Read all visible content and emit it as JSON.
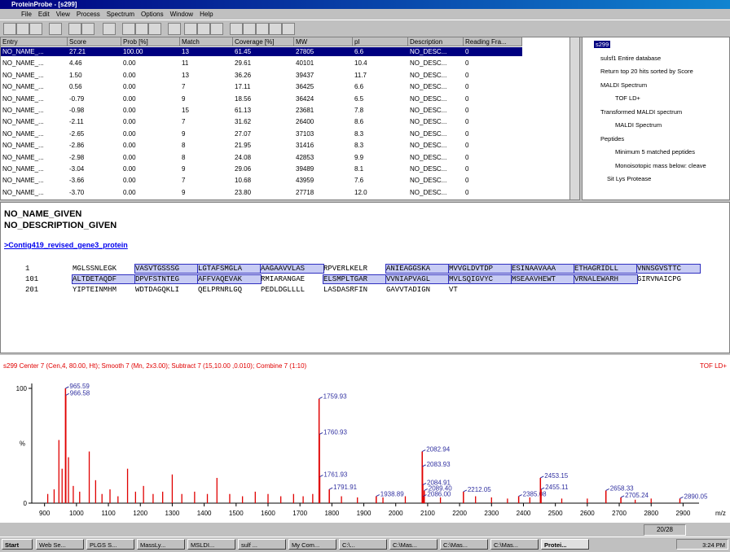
{
  "window": {
    "title": "ProteinProbe - [s299]",
    "menu": [
      "File",
      "Edit",
      "View",
      "Process",
      "Spectrum",
      "Options",
      "Window",
      "Help"
    ]
  },
  "results": {
    "columns": [
      "Entry",
      "Score",
      "Prob [%]",
      "Match",
      "Coverage [%]",
      "MW",
      "pI",
      "Description",
      "Reading Fra..."
    ],
    "rows": [
      [
        "NO_NAME_...",
        "27.21",
        "100.00",
        "13",
        "61.45",
        "27805",
        "6.6",
        "NO_DESC...",
        "0"
      ],
      [
        "NO_NAME_...",
        "4.46",
        "0.00",
        "11",
        "29.61",
        "40101",
        "10.4",
        "NO_DESC...",
        "0"
      ],
      [
        "NO_NAME_...",
        "1.50",
        "0.00",
        "13",
        "36.26",
        "39437",
        "11.7",
        "NO_DESC...",
        "0"
      ],
      [
        "NO_NAME_...",
        "0.56",
        "0.00",
        "7",
        "17.11",
        "36425",
        "6.6",
        "NO_DESC...",
        "0"
      ],
      [
        "NO_NAME_...",
        "-0.79",
        "0.00",
        "9",
        "18.56",
        "36424",
        "6.5",
        "NO_DESC...",
        "0"
      ],
      [
        "NO_NAME_...",
        "-0.98",
        "0.00",
        "15",
        "61.13",
        "23681",
        "7.8",
        "NO_DESC...",
        "0"
      ],
      [
        "NO_NAME_...",
        "-2.11",
        "0.00",
        "7",
        "31.62",
        "26400",
        "8.6",
        "NO_DESC...",
        "0"
      ],
      [
        "NO_NAME_...",
        "-2.65",
        "0.00",
        "9",
        "27.07",
        "37103",
        "8.3",
        "NO_DESC...",
        "0"
      ],
      [
        "NO_NAME_...",
        "-2.86",
        "0.00",
        "8",
        "21.95",
        "31416",
        "8.3",
        "NO_DESC...",
        "0"
      ],
      [
        "NO_NAME_...",
        "-2.98",
        "0.00",
        "8",
        "24.08",
        "42853",
        "9.9",
        "NO_DESC...",
        "0"
      ],
      [
        "NO_NAME_...",
        "-3.04",
        "0.00",
        "9",
        "29.06",
        "39489",
        "8.1",
        "NO_DESC...",
        "0"
      ],
      [
        "NO_NAME_...",
        "-3.66",
        "0.00",
        "7",
        "10.68",
        "43959",
        "7.6",
        "NO_DESC...",
        "0"
      ],
      [
        "NO_NAME_...",
        "-3.70",
        "0.00",
        "9",
        "23.80",
        "27718",
        "12.0",
        "NO_DESC...",
        "0"
      ]
    ]
  },
  "tree": [
    "s299",
    "sulsf1 Entire database",
    "Return top 20 hits sorted by Score",
    "MALDI Spectrum",
    "TOF LD+",
    "Transformed MALDI spectrum",
    "MALDI Spectrum",
    "Peptides",
    "Minimum 5 matched peptides",
    "Monoisotopic mass below: cleave",
    "Sit Lys Protease"
  ],
  "protein": {
    "name": "NO_NAME_GIVEN",
    "description": "NO_DESCRIPTION_GIVEN",
    "link": ">Contig419_revised_gene3_protein",
    "sequence": [
      {
        "start": "1",
        "blocks": [
          "MGLSSNLEGK",
          "VASVTGSSSG",
          "LGTAFSMGLA",
          "AAGAAVVLAS",
          "RPVERLKELR",
          "ANIEAGGSKA",
          "MVVGLDVTDP",
          "ESINAAVAAA",
          "ETHAGRIDLL",
          "VNNSGVSTTC"
        ]
      },
      {
        "start": "101",
        "blocks": [
          "ALTDETAQDF",
          "DPVFSTNTEG",
          "AFFVAQEVAK",
          "RMIARANGAE",
          "ELSMPLTGAR",
          "VVNIAPVAGL",
          "MVLSQIGVYC",
          "MSEAAVHEWT",
          "VRNALEWARH",
          "GIRVNAICPG"
        ]
      },
      {
        "start": "201",
        "blocks": [
          "YIPTEINMHM",
          "WDTDAGQKLI",
          "QELPRNRLGQ",
          "PEDLDGLLLL",
          "LASDASRFIN",
          "GAVVTADIGN",
          "VT"
        ]
      }
    ]
  },
  "spectrum": {
    "header": "s299  Center 7 (Cen,4, 80.00, Ht); Smooth 7 (Mn, 2x3.00); Subtract 7 (15,10.00 ,0.010); Combine 7 (1:10)",
    "mode": "TOF LD+",
    "xlabel": "m/z",
    "ylabel": "%",
    "xlim": [
      860,
      2950
    ],
    "xticks": [
      900,
      1000,
      1100,
      1200,
      1300,
      1400,
      1500,
      1600,
      1700,
      1800,
      1900,
      2000,
      2100,
      2200,
      2300,
      2400,
      2500,
      2600,
      2700,
      2800,
      2900
    ],
    "ylim": [
      0,
      100
    ],
    "yticks": [
      0,
      100
    ],
    "color": "#e00000",
    "labeled_peaks": [
      {
        "mz": 965.59,
        "intensity": 100
      },
      {
        "mz": 966.58,
        "intensity": 94
      },
      {
        "mz": 1759.93,
        "intensity": 91
      },
      {
        "mz": 1760.93,
        "intensity": 60
      },
      {
        "mz": 1761.93,
        "intensity": 23
      },
      {
        "mz": 1791.91,
        "intensity": 12
      },
      {
        "mz": 1938.89,
        "intensity": 6
      },
      {
        "mz": 2082.94,
        "intensity": 45
      },
      {
        "mz": 2083.93,
        "intensity": 32
      },
      {
        "mz": 2084.91,
        "intensity": 16
      },
      {
        "mz": 2089.4,
        "label": "2089.40",
        "intensity": 11
      },
      {
        "mz": 2086,
        "label": "2086.00",
        "intensity": 6
      },
      {
        "mz": 2212.05,
        "intensity": 10
      },
      {
        "mz": 2385.08,
        "intensity": 6
      },
      {
        "mz": 2453.15,
        "intensity": 22
      },
      {
        "mz": 2455.11,
        "intensity": 12
      },
      {
        "mz": 2658.33,
        "intensity": 11
      },
      {
        "mz": 2705.24,
        "intensity": 5
      },
      {
        "mz": 2890.05,
        "intensity": 4
      }
    ],
    "peaks": [
      [
        910,
        8
      ],
      [
        930,
        12
      ],
      [
        945,
        55
      ],
      [
        955,
        30
      ],
      [
        975,
        40
      ],
      [
        990,
        15
      ],
      [
        1010,
        10
      ],
      [
        1040,
        45
      ],
      [
        1060,
        20
      ],
      [
        1080,
        8
      ],
      [
        1105,
        12
      ],
      [
        1130,
        6
      ],
      [
        1160,
        30
      ],
      [
        1185,
        10
      ],
      [
        1210,
        15
      ],
      [
        1240,
        8
      ],
      [
        1270,
        10
      ],
      [
        1300,
        25
      ],
      [
        1330,
        8
      ],
      [
        1370,
        10
      ],
      [
        1410,
        8
      ],
      [
        1440,
        22
      ],
      [
        1480,
        8
      ],
      [
        1520,
        6
      ],
      [
        1560,
        10
      ],
      [
        1600,
        8
      ],
      [
        1640,
        6
      ],
      [
        1680,
        8
      ],
      [
        1710,
        6
      ],
      [
        1740,
        8
      ],
      [
        1830,
        6
      ],
      [
        1880,
        5
      ],
      [
        1960,
        5
      ],
      [
        2030,
        6
      ],
      [
        2140,
        5
      ],
      [
        2250,
        6
      ],
      [
        2300,
        5
      ],
      [
        2350,
        4
      ],
      [
        2420,
        5
      ],
      [
        2520,
        4
      ],
      [
        2600,
        4
      ],
      [
        2750,
        3
      ],
      [
        2800,
        4
      ]
    ]
  },
  "status": {
    "page": "20/28"
  },
  "taskbar": {
    "start": "Start",
    "items": [
      "Web Se...",
      "PLGS S...",
      "MassLy...",
      "MSLDI...",
      "sulf ...",
      "My Com...",
      "C:\\...",
      "C:\\Mas...",
      "C:\\Mas...",
      "C:\\Mas...",
      "Protei..."
    ],
    "clock": "3:24 PM"
  }
}
